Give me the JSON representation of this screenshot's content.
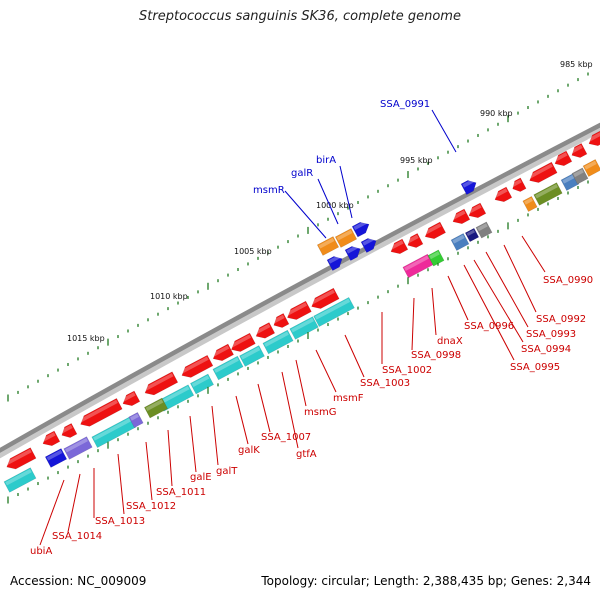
{
  "title": "Streptococcus sanguinis SK36, complete genome",
  "footer": {
    "accession": "Accession: NC_009009",
    "summary": "Topology: circular; Length: 2,388,435 bp; Genes: 2,344"
  },
  "colors": {
    "backbone": "#8a8a8a",
    "tick": "#1f7a1f",
    "forward_label": "#0000cc",
    "reverse_label": "#cc0000",
    "gene_red": "#ee1111",
    "gene_cyan": "#2ccbcb",
    "gene_blue": "#1515d8",
    "gene_orange": "#f08c1a",
    "gene_purple": "#7b68d8",
    "gene_olive": "#6b8e23",
    "gene_pink": "#ee2a9a",
    "gene_green": "#33cc33",
    "gene_steel": "#4a7fbf",
    "gene_navy": "#1a1a80",
    "gene_gray": "#808080"
  },
  "scale_labels": [
    "985 kbp",
    "990 kbp",
    "995 kbp",
    "1000 kbp",
    "1005 kbp",
    "1010 kbp",
    "1015 kbp"
  ],
  "gene_labels": [
    {
      "text": "SSA_0991",
      "strand": "forward"
    },
    {
      "text": "birA",
      "strand": "forward"
    },
    {
      "text": "galR",
      "strand": "forward"
    },
    {
      "text": "msmR",
      "strand": "forward"
    },
    {
      "text": "SSA_0990",
      "strand": "reverse"
    },
    {
      "text": "SSA_0992",
      "strand": "reverse"
    },
    {
      "text": "SSA_0993",
      "strand": "reverse"
    },
    {
      "text": "SSA_0994",
      "strand": "reverse"
    },
    {
      "text": "SSA_0995",
      "strand": "reverse"
    },
    {
      "text": "SSA_0996",
      "strand": "reverse"
    },
    {
      "text": "dnaX",
      "strand": "reverse"
    },
    {
      "text": "SSA_0998",
      "strand": "reverse"
    },
    {
      "text": "SSA_1002",
      "strand": "reverse"
    },
    {
      "text": "SSA_1003",
      "strand": "reverse"
    },
    {
      "text": "msmF",
      "strand": "reverse"
    },
    {
      "text": "msmG",
      "strand": "reverse"
    },
    {
      "text": "SSA_1007",
      "strand": "reverse"
    },
    {
      "text": "gtfA",
      "strand": "reverse"
    },
    {
      "text": "galK",
      "strand": "reverse"
    },
    {
      "text": "galT",
      "strand": "reverse"
    },
    {
      "text": "galE",
      "strand": "reverse"
    },
    {
      "text": "SSA_1011",
      "strand": "reverse"
    },
    {
      "text": "SSA_1012",
      "strand": "reverse"
    },
    {
      "text": "SSA_1013",
      "strand": "reverse"
    },
    {
      "text": "SSA_1014",
      "strand": "reverse"
    },
    {
      "text": "ubiA",
      "strand": "reverse"
    }
  ]
}
